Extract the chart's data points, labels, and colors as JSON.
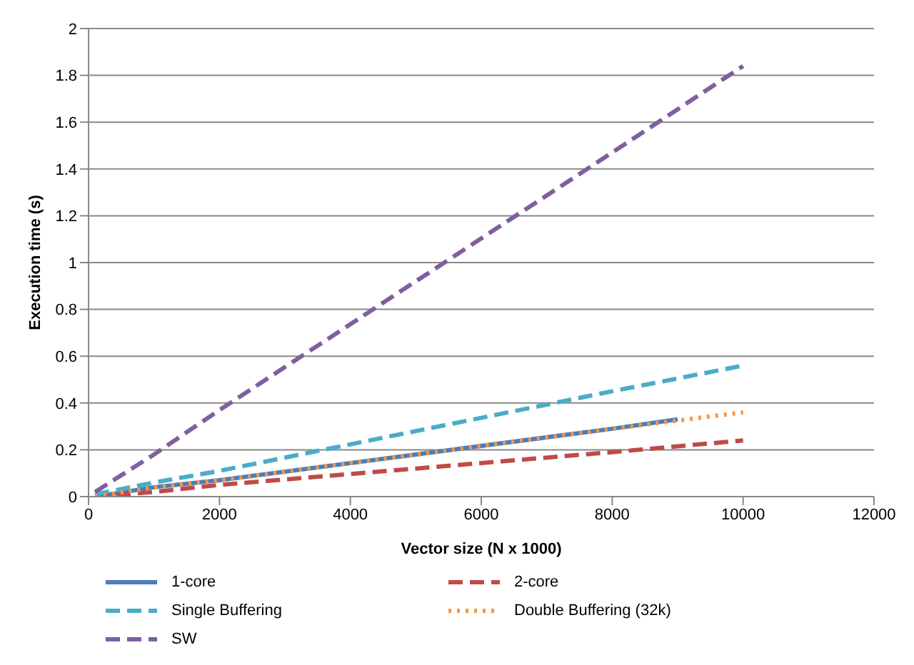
{
  "chart_data": {
    "type": "line",
    "xlabel": "Vector size (N x 1000)",
    "ylabel": "Execution time (s)",
    "xlim": [
      0,
      12000
    ],
    "xticks": [
      0,
      2000,
      4000,
      6000,
      8000,
      10000,
      12000
    ],
    "ylim": [
      0,
      2
    ],
    "yticks": [
      0,
      0.2,
      0.4,
      0.6,
      0.8,
      1,
      1.2,
      1.4,
      1.6,
      1.8,
      2
    ],
    "grid": "y",
    "legend": "bottom",
    "marker": "none",
    "series": [
      {
        "name": "1-core",
        "color": "#4a7ebb",
        "line_style": "solid",
        "x": [
          100,
          1000,
          2000,
          5000,
          8000,
          9000
        ],
        "values": [
          0.0,
          0.04,
          0.07,
          0.18,
          0.29,
          0.33
        ]
      },
      {
        "name": "2-core",
        "color": "#be4b48",
        "line_style": "dashed",
        "x": [
          100,
          1000,
          2000,
          5000,
          8000,
          10000
        ],
        "values": [
          0.0,
          0.02,
          0.05,
          0.12,
          0.19,
          0.24
        ]
      },
      {
        "name": "Single Buffering",
        "color": "#4bacc6",
        "line_style": "dashed",
        "x": [
          100,
          1000,
          2000,
          5000,
          8000,
          10000
        ],
        "values": [
          0.01,
          0.06,
          0.11,
          0.28,
          0.45,
          0.56
        ]
      },
      {
        "name": "Double Buffering (32k)",
        "color": "#f79646",
        "line_style": "dotted",
        "x": [
          100,
          1000,
          2000,
          5000,
          8000,
          10000
        ],
        "values": [
          0.0,
          0.04,
          0.07,
          0.18,
          0.29,
          0.36
        ]
      },
      {
        "name": "SW",
        "color": "#7f5fa0",
        "line_style": "dashed",
        "x": [
          100,
          1000,
          2000,
          5000,
          8000,
          10000
        ],
        "values": [
          0.02,
          0.18,
          0.37,
          0.92,
          1.47,
          1.84
        ]
      }
    ]
  }
}
